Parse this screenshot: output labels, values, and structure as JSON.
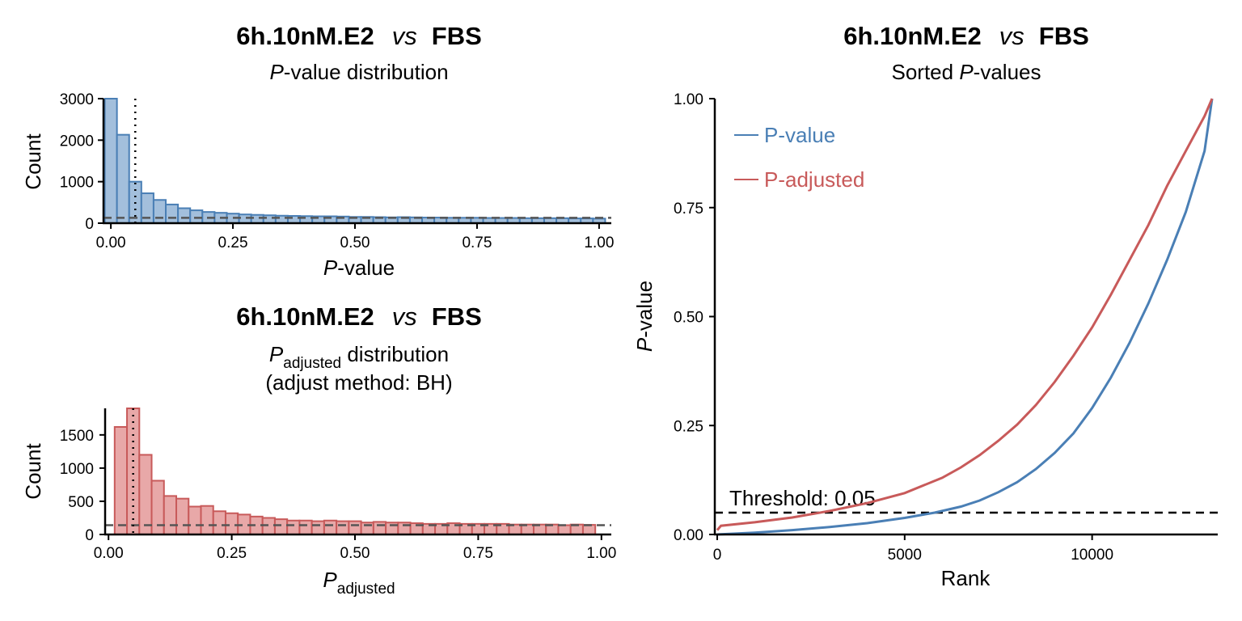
{
  "colors": {
    "pvalue": "#4a7fb5",
    "pvalue_fill": "#a3bfdc",
    "padj": "#c85a5a",
    "padj_fill": "#e8a8a8"
  },
  "chart_data": [
    {
      "type": "bar",
      "title": {
        "left": "6h.10nM.E2",
        "vs": "vs",
        "right": "FBS"
      },
      "subtitle": {
        "italic": "P",
        "rest": "-value distribution"
      },
      "xlabel": {
        "italic": "P",
        "rest": "-value"
      },
      "ylabel": "Count",
      "xlim": [
        -0.025,
        1.025
      ],
      "ylim": [
        0,
        3000
      ],
      "xticks": [
        "0.00",
        "0.25",
        "0.50",
        "0.75",
        "1.00"
      ],
      "yticks": [
        "0",
        "1000",
        "2000",
        "3000"
      ],
      "bin_width": 0.025,
      "bin_starts": [
        -0.0125,
        0.0125,
        0.0375,
        0.0625,
        0.0875,
        0.1125,
        0.1375,
        0.1625,
        0.1875,
        0.2125,
        0.2375,
        0.2625,
        0.2875,
        0.3125,
        0.3375,
        0.3625,
        0.3875,
        0.4125,
        0.4375,
        0.4625,
        0.4875,
        0.5125,
        0.5375,
        0.5625,
        0.5875,
        0.6125,
        0.6375,
        0.6625,
        0.6875,
        0.7125,
        0.7375,
        0.7625,
        0.7875,
        0.8125,
        0.8375,
        0.8625,
        0.8875,
        0.9125,
        0.9375,
        0.9625,
        0.9875
      ],
      "values": [
        3000,
        2130,
        1000,
        720,
        560,
        450,
        360,
        310,
        270,
        250,
        230,
        210,
        200,
        190,
        180,
        175,
        170,
        165,
        165,
        160,
        150,
        150,
        145,
        140,
        145,
        140,
        135,
        135,
        130,
        130,
        130,
        125,
        125,
        125,
        120,
        120,
        120,
        120,
        115,
        115,
        110
      ],
      "threshold": 0.05,
      "null_level": 130
    },
    {
      "type": "bar",
      "title": {
        "left": "6h.10nM.E2",
        "vs": "vs",
        "right": "FBS"
      },
      "subtitle": {
        "italic": "P",
        "sub": "adjusted",
        "rest": " distribution",
        "line2": "(adjust method: BH)"
      },
      "xlabel": {
        "italic": "P",
        "sub": "adjusted"
      },
      "ylabel": "Count",
      "xlim": [
        -0.02,
        1.02
      ],
      "ylim": [
        0,
        1900
      ],
      "xticks": [
        "0.00",
        "0.25",
        "0.50",
        "0.75",
        "1.00"
      ],
      "yticks": [
        "0",
        "500",
        "1000",
        "1500"
      ],
      "bin_width": 0.025,
      "bin_starts": [
        0.0125,
        0.0375,
        0.0625,
        0.0875,
        0.1125,
        0.1375,
        0.1625,
        0.1875,
        0.2125,
        0.2375,
        0.2625,
        0.2875,
        0.3125,
        0.3375,
        0.3625,
        0.3875,
        0.4125,
        0.4375,
        0.4625,
        0.4875,
        0.5125,
        0.5375,
        0.5625,
        0.5875,
        0.6125,
        0.6375,
        0.6625,
        0.6875,
        0.7125,
        0.7375,
        0.7625,
        0.7875,
        0.8125,
        0.8375,
        0.8625,
        0.8875,
        0.9125,
        0.9375,
        0.9625
      ],
      "values": [
        1620,
        1900,
        1200,
        810,
        580,
        540,
        420,
        430,
        350,
        320,
        300,
        270,
        250,
        230,
        210,
        210,
        200,
        210,
        200,
        200,
        180,
        190,
        180,
        180,
        170,
        160,
        160,
        170,
        160,
        160,
        160,
        160,
        150,
        150,
        150,
        150,
        140,
        150,
        145
      ],
      "threshold": 0.05,
      "null_level": 140
    },
    {
      "type": "line",
      "title": {
        "left": "6h.10nM.E2",
        "vs": "vs",
        "right": "FBS"
      },
      "subtitle": {
        "pre": "Sorted ",
        "italic": "P",
        "rest": "-values"
      },
      "xlabel": "Rank",
      "ylabel": {
        "italic": "P",
        "rest": "-value"
      },
      "xlim": [
        0,
        13500
      ],
      "ylim": [
        0,
        1
      ],
      "xticks": [
        "0",
        "5000",
        "10000"
      ],
      "yticks": [
        "0.00",
        "0.25",
        "0.50",
        "0.75",
        "1.00"
      ],
      "legend_position": "top-left",
      "threshold": 0.05,
      "threshold_label": "Threshold: 0.05",
      "series": [
        {
          "name": "P-value",
          "x": [
            0,
            1000,
            2000,
            3000,
            4000,
            5000,
            5800,
            6500,
            7000,
            7500,
            8000,
            8500,
            9000,
            9500,
            10000,
            10500,
            11000,
            11500,
            12000,
            12500,
            13000,
            13200
          ],
          "y": [
            0,
            0.004,
            0.01,
            0.017,
            0.026,
            0.038,
            0.05,
            0.064,
            0.078,
            0.097,
            0.12,
            0.15,
            0.187,
            0.232,
            0.29,
            0.36,
            0.44,
            0.53,
            0.63,
            0.74,
            0.88,
            1.0
          ]
        },
        {
          "name": "P-adjusted",
          "x": [
            0,
            100,
            1000,
            2000,
            3000,
            4000,
            5000,
            6000,
            6500,
            7000,
            7500,
            8000,
            8500,
            9000,
            9500,
            10000,
            10500,
            11000,
            11500,
            12000,
            12500,
            13000,
            13200
          ],
          "y": [
            0.01,
            0.02,
            0.028,
            0.039,
            0.054,
            0.072,
            0.095,
            0.13,
            0.154,
            0.182,
            0.215,
            0.252,
            0.297,
            0.35,
            0.41,
            0.475,
            0.55,
            0.63,
            0.71,
            0.8,
            0.88,
            0.96,
            1.0
          ]
        }
      ]
    }
  ]
}
